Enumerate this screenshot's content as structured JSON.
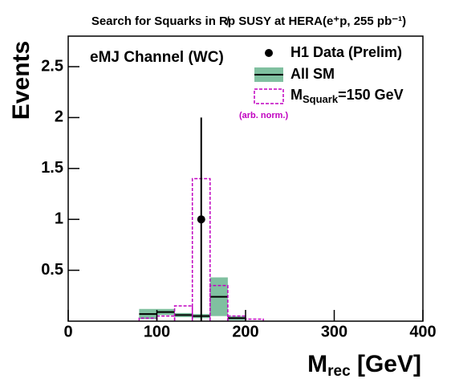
{
  "chart_data": {
    "type": "histogram",
    "title": "Search for Squarks in R̸p SUSY at HERA(e⁺p, 255 pb⁻¹)",
    "annotation": "eMJ Channel (WC)",
    "note": "(arb. norm.)",
    "xlabel": {
      "main": "M",
      "sub": "rec",
      "rest": " [GeV]"
    },
    "ylabel": "Events",
    "bins": [
      80,
      100,
      120,
      140,
      160,
      180,
      200,
      220
    ],
    "series": [
      {
        "name": "All SM",
        "color": "#80c0a0",
        "line_color": "#000000",
        "values": [
          0.07,
          0.09,
          0.06,
          0.05,
          0.24,
          0.03,
          0
        ],
        "errors": [
          0.05,
          0.03,
          0.02,
          0.02,
          0.19,
          0.02,
          0
        ]
      },
      {
        "name": "M",
        "name_sub": "Squark",
        "name_rest": "=150 GeV",
        "color": "#c000c0",
        "values": [
          0.03,
          0.05,
          0.15,
          1.4,
          0.35,
          0.05,
          0.02
        ]
      }
    ],
    "data": {
      "name": "H1 Data (Prelim)",
      "color": "#000000",
      "x": [
        150
      ],
      "values": [
        1
      ],
      "errors": [
        1
      ]
    },
    "xlim": [
      0,
      400
    ],
    "xticks": [
      0,
      100,
      200,
      300,
      400
    ],
    "ylim": [
      0,
      2.8
    ],
    "yticks": [
      0.5,
      1,
      1.5,
      2,
      2.5
    ]
  }
}
